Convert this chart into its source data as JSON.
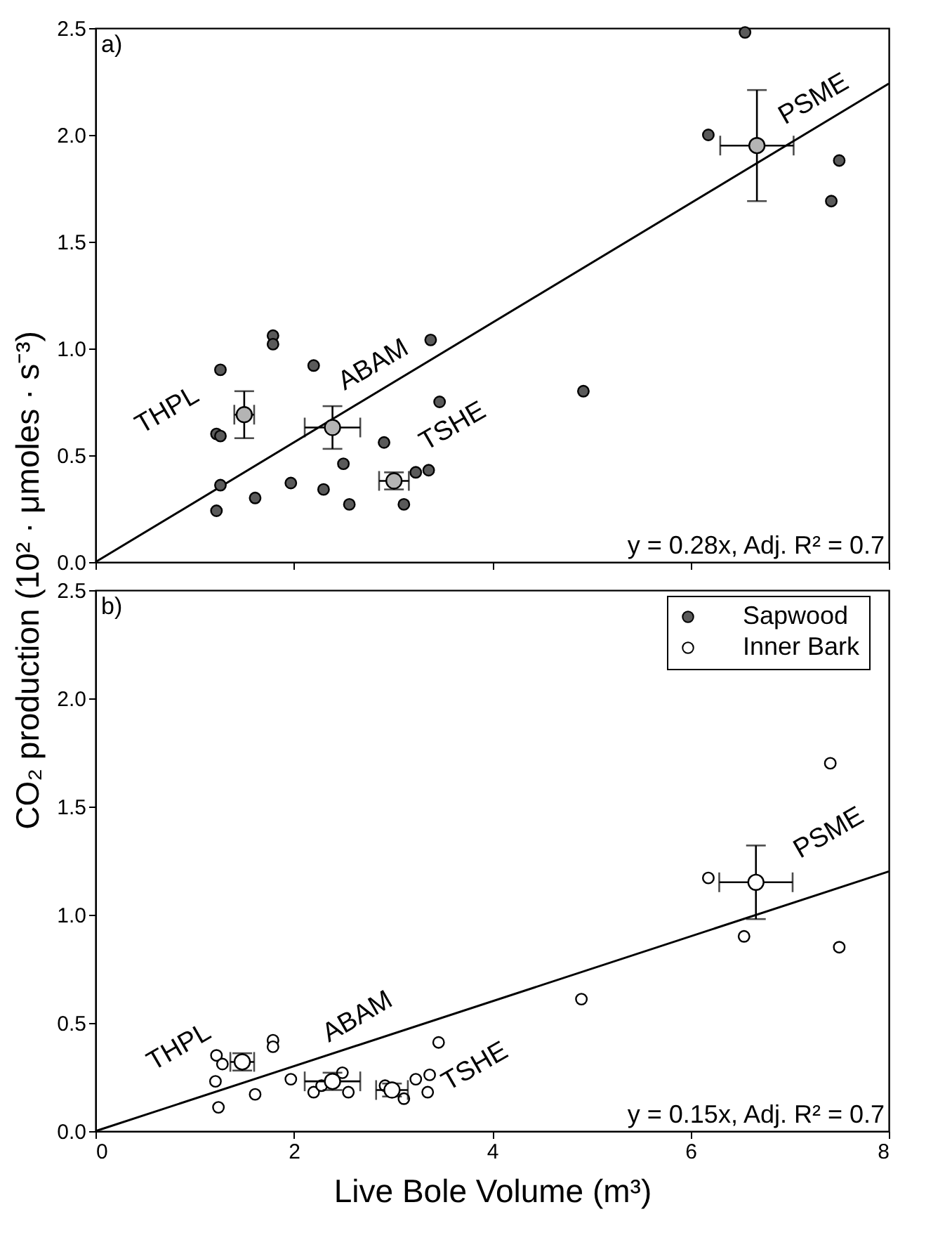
{
  "chart_data": [
    {
      "type": "scatter",
      "ylabel": "CO₂ production (10² · μmoles · s⁻³)",
      "xlim": [
        0,
        8
      ],
      "xticks": [
        0,
        2,
        4,
        6,
        8
      ],
      "ylim": [
        0,
        2.5
      ],
      "yticks": [
        {
          "value": 0,
          "label": "0.0"
        },
        {
          "value": 0.5,
          "label": "0.5"
        },
        {
          "value": 1,
          "label": "1.0"
        },
        {
          "value": 1.5,
          "label": "1.5"
        },
        {
          "value": 2,
          "label": "2.0"
        },
        {
          "value": 2.5,
          "label": "2.5"
        }
      ],
      "tick_labels": "y",
      "marker": "circle",
      "series": [
        {
          "name": "Sapwood",
          "color": "#5a5a5a",
          "x": [
            1.22,
            1.22,
            1.26,
            1.26,
            1.26,
            1.61,
            1.79,
            1.79,
            1.97,
            2.2,
            2.3,
            2.5,
            2.56,
            2.91,
            3.11,
            3.23,
            3.36,
            3.38,
            3.47,
            4.92,
            6.18,
            6.55,
            7.42,
            7.5
          ],
          "values": [
            0.6,
            0.24,
            0.9,
            0.59,
            0.36,
            0.3,
            1.06,
            1.02,
            0.37,
            0.92,
            0.34,
            0.46,
            0.27,
            0.56,
            0.27,
            0.42,
            0.43,
            1.04,
            0.75,
            0.8,
            2.0,
            2.48,
            1.69,
            1.88
          ]
        },
        {
          "color": "#b4b4b4",
          "x": [
            1.5,
            2.39,
            3.01,
            6.67
          ],
          "values": [
            0.69,
            0.63,
            0.38,
            1.95
          ],
          "errors": [
            0.11,
            0.1,
            0.04,
            0.26
          ],
          "xerrors": [
            0.1,
            0.28,
            0.15,
            0.37
          ]
        },
        {
          "type": "line",
          "color": "#000000",
          "marker": "none",
          "x": [
            0,
            8
          ],
          "values": [
            0,
            2.24
          ]
        }
      ],
      "annotations": [
        "a)",
        "y = 0.28x, Adj. R² = 0.7",
        "THPL",
        "ABAM",
        "TSHE",
        "PSME"
      ]
    },
    {
      "type": "scatter",
      "xlabel": "Live Bole Volume (m³)",
      "xlim": [
        0,
        8
      ],
      "xticks": [
        0,
        2,
        4,
        6,
        8
      ],
      "ylim": [
        0,
        2.5
      ],
      "yticks": [
        {
          "value": 0,
          "label": "0.0"
        },
        {
          "value": 0.5,
          "label": "0.5"
        },
        {
          "value": 1,
          "label": "1.0"
        },
        {
          "value": 1.5,
          "label": "1.5"
        },
        {
          "value": 2,
          "label": "2.0"
        },
        {
          "value": 2.5,
          "label": "2.5"
        }
      ],
      "marker": "circle",
      "legend": "top right",
      "series": [
        {
          "name": "Inner Bark",
          "color": "#ffffff",
          "x": [
            1.21,
            1.22,
            1.24,
            1.28,
            1.61,
            1.79,
            1.79,
            1.97,
            2.2,
            2.28,
            2.49,
            2.55,
            2.92,
            3.11,
            3.23,
            3.35,
            3.37,
            3.46,
            4.9,
            6.18,
            6.54,
            7.41,
            7.5
          ],
          "values": [
            0.23,
            0.35,
            0.11,
            0.31,
            0.17,
            0.42,
            0.39,
            0.24,
            0.18,
            0.21,
            0.27,
            0.18,
            0.21,
            0.15,
            0.24,
            0.18,
            0.26,
            0.41,
            0.61,
            1.17,
            0.9,
            1.7,
            0.85
          ]
        },
        {
          "color": "#ffffff",
          "x": [
            1.48,
            2.39,
            2.99,
            6.66
          ],
          "values": [
            0.32,
            0.23,
            0.19,
            1.15
          ],
          "errors": [
            0.04,
            0.04,
            0.03,
            0.17
          ],
          "xerrors": [
            0.12,
            0.28,
            0.16,
            0.37
          ]
        },
        {
          "type": "line",
          "color": "#000000",
          "marker": "none",
          "x": [
            0,
            8
          ],
          "values": [
            0,
            1.2
          ]
        }
      ],
      "annotations": [
        "b)",
        "y = 0.15x, Adj. R² = 0.7",
        "THPL",
        "ABAM",
        "TSHE",
        "PSME"
      ]
    }
  ]
}
